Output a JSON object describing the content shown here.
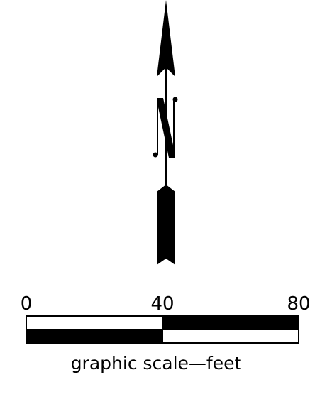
{
  "north_arrow": {
    "letter": "N",
    "icon": "north-arrow-icon"
  },
  "scale_bar": {
    "tick_labels": [
      "0",
      "40",
      "80"
    ],
    "caption": "graphic scale—feet"
  },
  "colors": {
    "ink": "#000000",
    "paper": "#ffffff"
  }
}
